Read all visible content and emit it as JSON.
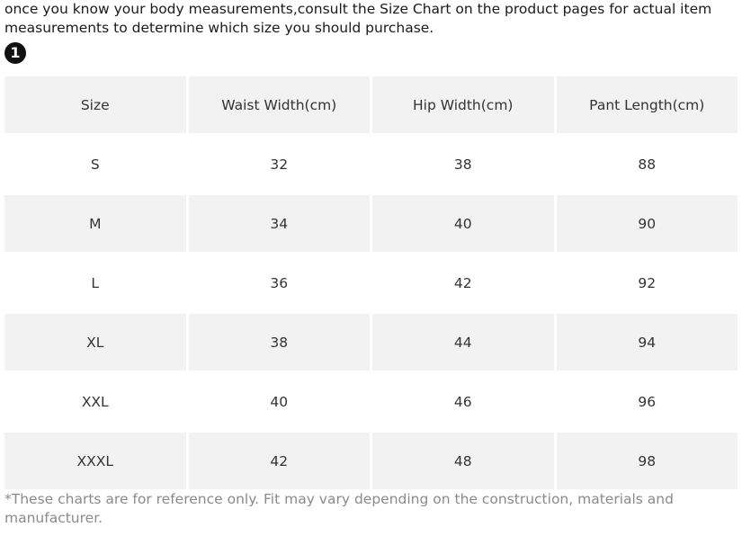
{
  "intro": "once you know your body measurements,consult the Size Chart on the product pages for actual item measurements to determine which size you should purchase.",
  "badge": "1",
  "table": {
    "header": [
      "Size",
      "Waist Width(cm)",
      "Hip Width(cm)",
      "Pant Length(cm)"
    ],
    "rows": [
      [
        "S",
        "32",
        "38",
        "88"
      ],
      [
        "M",
        "34",
        "40",
        "90"
      ],
      [
        "L",
        "36",
        "42",
        "92"
      ],
      [
        "XL",
        "38",
        "44",
        "94"
      ],
      [
        "XXL",
        "40",
        "46",
        "96"
      ],
      [
        "XXXL",
        "42",
        "48",
        "98"
      ]
    ]
  },
  "footnote": "*These charts are for reference only. Fit may vary depending on the construction, materials and manufacturer."
}
